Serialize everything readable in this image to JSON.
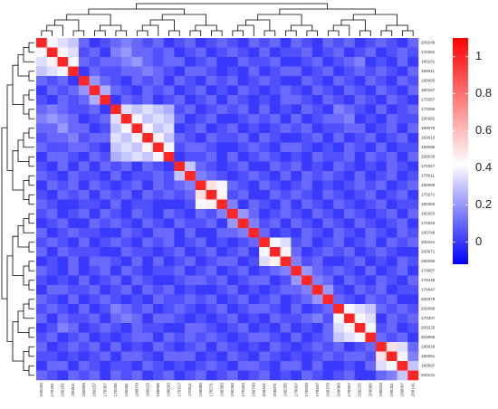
{
  "chart_data": {
    "type": "heatmap",
    "categories": [
      "200249",
      "170291",
      "180161",
      "180011",
      "180093",
      "180157",
      "170357",
      "170255",
      "190381",
      "180079",
      "160013",
      "180095",
      "190033",
      "170317",
      "170011",
      "190089",
      "170271",
      "190363",
      "190263",
      "170343",
      "180749",
      "200341",
      "200071",
      "190255",
      "170007",
      "170449",
      "170447",
      "200379",
      "200069",
      "170307",
      "200225",
      "200065",
      "190029",
      "190251",
      "180097",
      "200141"
    ],
    "values": [
      [
        1,
        0.4,
        0.35,
        0.3,
        0.1,
        0,
        0.05,
        0.1,
        0.15,
        0.1,
        0.05,
        0.1,
        0,
        0.05,
        0.1,
        0,
        0.05,
        0.1,
        0.05,
        0,
        0.1,
        0.05,
        0.1,
        0,
        0.1,
        0.05,
        0,
        0.1,
        0.05,
        0.1,
        0,
        0.05,
        0.1,
        0.05,
        0,
        0.1
      ],
      [
        0.4,
        1,
        0.45,
        0.35,
        0.05,
        0.1,
        0,
        0.15,
        0.2,
        0.1,
        0.1,
        0.05,
        0.1,
        0,
        0.05,
        0.1,
        0,
        0.05,
        0.1,
        0.05,
        0,
        0.1,
        0,
        0.05,
        0.05,
        0.1,
        0,
        0.05,
        0.1,
        0,
        0.05,
        0.1,
        0,
        0.05,
        0.1,
        0.05
      ],
      [
        0.35,
        0.45,
        1,
        0.4,
        0.1,
        0.05,
        0.1,
        0.1,
        0.15,
        0.2,
        0.1,
        0.05,
        0.1,
        0.1,
        0,
        0.05,
        0.1,
        0,
        0,
        0.1,
        0.05,
        0.05,
        0.1,
        0,
        0,
        0.05,
        0.1,
        0,
        0.05,
        0.1,
        0.15,
        0,
        0.05,
        0,
        0.1,
        0
      ],
      [
        0.3,
        0.35,
        0.4,
        1,
        0,
        0.1,
        0.05,
        0.05,
        0.1,
        0.1,
        0.15,
        0.1,
        0.05,
        0,
        0.1,
        0.1,
        0.05,
        0,
        0.05,
        0,
        0.1,
        0,
        0.05,
        0.1,
        0.1,
        0,
        0.05,
        0.1,
        0,
        0.05,
        0.1,
        0.05,
        0.1,
        0.05,
        0,
        0.1
      ],
      [
        0.1,
        0.05,
        0.1,
        0,
        1,
        0.2,
        0.1,
        0.05,
        0,
        0.1,
        0.05,
        0.1,
        0,
        0.1,
        0.05,
        0,
        0.1,
        0.05,
        0.1,
        0,
        0.05,
        0.1,
        0.05,
        0,
        0,
        0.1,
        0.05,
        0,
        0.1,
        0.05,
        0,
        0.1,
        0.05,
        0,
        0.1,
        0.05
      ],
      [
        0,
        0.1,
        0.05,
        0.1,
        0.2,
        1,
        0.25,
        0.1,
        0.05,
        0,
        0.1,
        0.05,
        0.1,
        0,
        0.05,
        0.1,
        0,
        0.05,
        0,
        0.1,
        0.05,
        0,
        0.05,
        0.1,
        0.05,
        0,
        0.1,
        0.05,
        0,
        0.1,
        0.05,
        0,
        0.1,
        0.05,
        0,
        0.1
      ],
      [
        0.05,
        0,
        0.1,
        0.05,
        0.1,
        0.25,
        1,
        0,
        0.1,
        0.05,
        0.1,
        0,
        0.05,
        0.1,
        0,
        0.05,
        0.1,
        0,
        0.1,
        0.05,
        0,
        0.05,
        0,
        0.1,
        0.1,
        0.05,
        0,
        0.1,
        0.05,
        0,
        0.1,
        0.05,
        0,
        0.1,
        0.05,
        0
      ],
      [
        0.1,
        0.15,
        0.1,
        0.05,
        0.05,
        0.1,
        0,
        1,
        0.35,
        0.3,
        0.35,
        0.3,
        0.25,
        0.05,
        0.1,
        0,
        0.05,
        0.1,
        0.05,
        0.1,
        0,
        0.1,
        0,
        0.05,
        0,
        0.1,
        0.05,
        0,
        0.15,
        0.1,
        0.05,
        0,
        0.1,
        0,
        0.05,
        0.1
      ],
      [
        0.15,
        0.2,
        0.15,
        0.1,
        0,
        0.05,
        0.1,
        0.35,
        1,
        0.4,
        0.3,
        0.35,
        0.3,
        0.1,
        0,
        0.05,
        0.1,
        0,
        0,
        0.05,
        0.1,
        0.05,
        0.1,
        0,
        0.1,
        0,
        0.05,
        0.1,
        0.1,
        0.15,
        0,
        0.05,
        0,
        0.1,
        0.05,
        0.05
      ],
      [
        0.1,
        0.1,
        0.2,
        0.1,
        0.1,
        0,
        0.05,
        0.3,
        0.4,
        1,
        0.4,
        0.3,
        0.35,
        0,
        0.05,
        0.1,
        0,
        0.05,
        0.1,
        0,
        0.05,
        0,
        0.05,
        0.1,
        0.05,
        0.1,
        0,
        0.05,
        0.05,
        0.1,
        0.1,
        0,
        0.05,
        0.1,
        0,
        0.1
      ],
      [
        0.05,
        0.1,
        0.1,
        0.15,
        0.05,
        0.1,
        0.1,
        0.35,
        0.3,
        0.4,
        1,
        0.45,
        0.3,
        0.1,
        0.05,
        0,
        0.1,
        0.05,
        0.05,
        0.1,
        0,
        0.1,
        0.05,
        0,
        0,
        0.05,
        0.1,
        0,
        0.1,
        0,
        0.05,
        0.1,
        0,
        0.05,
        0.1,
        0
      ],
      [
        0.1,
        0.05,
        0.05,
        0.1,
        0.1,
        0.05,
        0,
        0.3,
        0.35,
        0.3,
        0.45,
        1,
        0.4,
        0.05,
        0.1,
        0.1,
        0.05,
        0,
        0,
        0.05,
        0.1,
        0.05,
        0,
        0.1,
        0.1,
        0.05,
        0,
        0.05,
        0,
        0.1,
        0.05,
        0,
        0.1,
        0,
        0.05,
        0.05
      ],
      [
        0,
        0.1,
        0.1,
        0.05,
        0,
        0.1,
        0.05,
        0.25,
        0.3,
        0.35,
        0.3,
        0.4,
        1,
        0,
        0.05,
        0.05,
        0.1,
        0,
        0.1,
        0,
        0.05,
        0.1,
        0.05,
        0,
        0.05,
        0,
        0.1,
        0.05,
        0.05,
        0.1,
        0,
        0.1,
        0.05,
        0.1,
        0,
        0.1
      ],
      [
        0.05,
        0,
        0.1,
        0,
        0.1,
        0,
        0.1,
        0.05,
        0.1,
        0,
        0.1,
        0.05,
        0,
        1,
        0.3,
        0.1,
        0.05,
        0,
        0.05,
        0.1,
        0,
        0,
        0.1,
        0.05,
        0.1,
        0,
        0.05,
        0,
        0.1,
        0.05,
        0,
        0.05,
        0,
        0.1,
        0.05,
        0
      ],
      [
        0.1,
        0.05,
        0,
        0.1,
        0.05,
        0.05,
        0,
        0.1,
        0,
        0.05,
        0.05,
        0.1,
        0.05,
        0.3,
        1,
        0.15,
        0.1,
        0.05,
        0,
        0.05,
        0.1,
        0.05,
        0,
        0.1,
        0,
        0.1,
        0.05,
        0.1,
        0.05,
        0,
        0.1,
        0,
        0.05,
        0.1,
        0,
        0.05
      ],
      [
        0,
        0.1,
        0.05,
        0.1,
        0,
        0.1,
        0.05,
        0,
        0.05,
        0.1,
        0,
        0.1,
        0.05,
        0.1,
        0.15,
        1,
        0.5,
        0.4,
        0.1,
        0.05,
        0,
        0.1,
        0.05,
        0,
        0.05,
        0.1,
        0,
        0.05,
        0,
        0.05,
        0.1,
        0.05,
        0.1,
        0,
        0.05,
        0.1
      ],
      [
        0.05,
        0,
        0.1,
        0.05,
        0.1,
        0,
        0.1,
        0.05,
        0.1,
        0,
        0.1,
        0.05,
        0.1,
        0.05,
        0.1,
        0.5,
        1,
        0.45,
        0.05,
        0.1,
        0,
        0,
        0.1,
        0.05,
        0.1,
        0.05,
        0,
        0.1,
        0.05,
        0,
        0.05,
        0.1,
        0,
        0.05,
        0.1,
        0
      ],
      [
        0.1,
        0.05,
        0,
        0,
        0.05,
        0.05,
        0,
        0.1,
        0,
        0.05,
        0.05,
        0,
        0,
        0,
        0.05,
        0.4,
        0.45,
        1,
        0.15,
        0,
        0.1,
        0.05,
        0,
        0.1,
        0,
        0.1,
        0.05,
        0,
        0.1,
        0.05,
        0,
        0.05,
        0.1,
        0,
        0.05,
        0.05
      ],
      [
        0.05,
        0.1,
        0,
        0.05,
        0.1,
        0,
        0.1,
        0.05,
        0,
        0.1,
        0.05,
        0,
        0.1,
        0.05,
        0,
        0.1,
        0.05,
        0.15,
        1,
        0.2,
        0.1,
        0,
        0.05,
        0.1,
        0.05,
        0,
        0.1,
        0.05,
        0,
        0.1,
        0.05,
        0,
        0.05,
        0.1,
        0,
        0.1
      ],
      [
        0,
        0.05,
        0.1,
        0,
        0,
        0.1,
        0.05,
        0.1,
        0.05,
        0,
        0.1,
        0.05,
        0,
        0.1,
        0.05,
        0.05,
        0.1,
        0,
        0.2,
        1,
        0.15,
        0.05,
        0.1,
        0,
        0.1,
        0.05,
        0,
        0.1,
        0.05,
        0,
        0.1,
        0.05,
        0,
        0.05,
        0.1,
        0
      ],
      [
        0.1,
        0,
        0.05,
        0.1,
        0.05,
        0.05,
        0,
        0,
        0.1,
        0.05,
        0,
        0.1,
        0.1,
        0,
        0.1,
        0,
        0,
        0.1,
        0.1,
        0.15,
        1,
        0.1,
        0,
        0.05,
        0,
        0.1,
        0.05,
        0,
        0.1,
        0.05,
        0,
        0.1,
        0.05,
        0,
        0.1,
        0.05
      ],
      [
        0.05,
        0.1,
        0.05,
        0,
        0.1,
        0,
        0.05,
        0.1,
        0.05,
        0,
        0.1,
        0.05,
        0.1,
        0,
        0.05,
        0.1,
        0,
        0.05,
        0,
        0.05,
        0.1,
        1,
        0.4,
        0.35,
        0.05,
        0.1,
        0,
        0.05,
        0.1,
        0,
        0.05,
        0.1,
        0,
        0.1,
        0.05,
        0.1
      ],
      [
        0.1,
        0,
        0.1,
        0.05,
        0.05,
        0.05,
        0,
        0,
        0.1,
        0.05,
        0.05,
        0,
        0.05,
        0.1,
        0,
        0.05,
        0.1,
        0,
        0.05,
        0.1,
        0,
        0.4,
        1,
        0.45,
        0.1,
        0,
        0.05,
        0.1,
        0.05,
        0.1,
        0,
        0.05,
        0.1,
        0.05,
        0,
        0
      ],
      [
        0,
        0.05,
        0,
        0.1,
        0,
        0.1,
        0.1,
        0.05,
        0,
        0.1,
        0,
        0.1,
        0,
        0.05,
        0.1,
        0,
        0.05,
        0.1,
        0.1,
        0,
        0.05,
        0.35,
        0.45,
        1,
        0.15,
        0.05,
        0.1,
        0,
        0,
        0.05,
        0.1,
        0,
        0.05,
        0,
        0.1,
        0.05
      ],
      [
        0.1,
        0.05,
        0,
        0.1,
        0,
        0.05,
        0.1,
        0,
        0.1,
        0.05,
        0,
        0.05,
        0.05,
        0.1,
        0,
        0.05,
        0.1,
        0,
        0.05,
        0.1,
        0,
        0.05,
        0.1,
        0.15,
        1,
        0.2,
        0.1,
        0.05,
        0.1,
        0.05,
        0,
        0.1,
        0,
        0.05,
        0.1,
        0
      ],
      [
        0.05,
        0,
        0.05,
        0,
        0.1,
        0,
        0.05,
        0.1,
        0,
        0.1,
        0.05,
        0,
        0,
        0.05,
        0.1,
        0.1,
        0.05,
        0.1,
        0,
        0.05,
        0.1,
        0.1,
        0,
        0.05,
        0.2,
        1,
        0.15,
        0.1,
        0,
        0.1,
        0.05,
        0,
        0.1,
        0.05,
        0,
        0.1
      ],
      [
        0,
        0.1,
        0.1,
        0.05,
        0.05,
        0.1,
        0,
        0.05,
        0.1,
        0,
        0.1,
        0.05,
        0.1,
        0,
        0.05,
        0,
        0,
        0.05,
        0.1,
        0,
        0.05,
        0,
        0.05,
        0.1,
        0.1,
        0.15,
        1,
        0.2,
        0.05,
        0,
        0.1,
        0.05,
        0.1,
        0,
        0.05,
        0.05
      ],
      [
        0.1,
        0.05,
        0,
        0.1,
        0,
        0.05,
        0.1,
        0.05,
        0,
        0.05,
        0,
        0.1,
        0.05,
        0.05,
        0.1,
        0.05,
        0.1,
        0,
        0.05,
        0.1,
        0,
        0.05,
        0.1,
        0,
        0.05,
        0.1,
        0.2,
        1,
        0.1,
        0.05,
        0,
        0.1,
        0.05,
        0.1,
        0,
        0
      ],
      [
        0.05,
        0.1,
        0.05,
        0,
        0.1,
        0,
        0.05,
        0.15,
        0.1,
        0.05,
        0.1,
        0,
        0.05,
        0.1,
        0.05,
        0,
        0.05,
        0.1,
        0,
        0.05,
        0.1,
        0.1,
        0.05,
        0,
        0.1,
        0,
        0.05,
        0.1,
        1,
        0.4,
        0.35,
        0.3,
        0.1,
        0.05,
        0.1,
        0.05
      ],
      [
        0.1,
        0,
        0.1,
        0.05,
        0.05,
        0.1,
        0,
        0.1,
        0.15,
        0.1,
        0,
        0.1,
        0.1,
        0.05,
        0,
        0.05,
        0,
        0.05,
        0.1,
        0,
        0.05,
        0,
        0.1,
        0.05,
        0.05,
        0.1,
        0.15,
        0.05,
        0.4,
        1,
        0.45,
        0.35,
        0,
        0.1,
        0.05,
        0.1
      ],
      [
        0,
        0.05,
        0.15,
        0.1,
        0,
        0.05,
        0.1,
        0.05,
        0,
        0.1,
        0.05,
        0.05,
        0,
        0,
        0.1,
        0.1,
        0.05,
        0,
        0.05,
        0.1,
        0,
        0.05,
        0,
        0.1,
        0,
        0.05,
        0,
        0.1,
        0.35,
        0.45,
        1,
        0.4,
        0.05,
        0.1,
        0,
        0.05
      ],
      [
        0.05,
        0.1,
        0,
        0.05,
        0.1,
        0,
        0.05,
        0,
        0.05,
        0.1,
        0.1,
        0,
        0.1,
        0.05,
        0.1,
        0.05,
        0.1,
        0.05,
        0,
        0.05,
        0.1,
        0.1,
        0.05,
        0,
        0.1,
        0,
        0.05,
        0.1,
        0.3,
        0.35,
        0.4,
        1,
        0.1,
        0.05,
        0.1,
        0
      ],
      [
        0.1,
        0,
        0.05,
        0.1,
        0.05,
        0.1,
        0,
        0.1,
        0,
        0.05,
        0,
        0.1,
        0.05,
        0,
        0.05,
        0.1,
        0,
        0.1,
        0.05,
        0,
        0.05,
        0,
        0.1,
        0.05,
        0,
        0.05,
        0.1,
        0.05,
        0.1,
        0,
        0.05,
        0.1,
        1,
        0.5,
        0.35,
        0.1
      ],
      [
        0.05,
        0.05,
        0,
        0.05,
        0,
        0.05,
        0.1,
        0,
        0.1,
        0.1,
        0.05,
        0,
        0.1,
        0.1,
        0.1,
        0,
        0.05,
        0,
        0.1,
        0.05,
        0,
        0.1,
        0.05,
        0,
        0.05,
        0,
        0.05,
        0.1,
        0.05,
        0.1,
        0.1,
        0.05,
        0.5,
        1,
        0.4,
        0.15
      ],
      [
        0,
        0.1,
        0.1,
        0,
        0.1,
        0.05,
        0,
        0.05,
        0.05,
        0,
        0.1,
        0.05,
        0,
        0.05,
        0,
        0.05,
        0.1,
        0.05,
        0,
        0.1,
        0.1,
        0.05,
        0,
        0.1,
        0.1,
        0,
        0.1,
        0,
        0,
        0.05,
        0,
        0.1,
        0.35,
        0.4,
        1,
        0.3
      ],
      [
        0.1,
        0.05,
        0,
        0.1,
        0.05,
        0.1,
        0,
        0.1,
        0.05,
        0.1,
        0,
        0.05,
        0.1,
        0,
        0.05,
        0.1,
        0,
        0.05,
        0.1,
        0,
        0.05,
        0.1,
        0,
        0.05,
        0,
        0.1,
        0.05,
        0,
        0.05,
        0.1,
        0,
        0,
        0.1,
        0.15,
        0.3,
        1
      ]
    ],
    "clim": [
      -0.12,
      1.1
    ],
    "colormap": [
      [
        -0.12,
        "#0000ff"
      ],
      [
        0.42,
        "#ffffff"
      ],
      [
        1.1,
        "#ff0000"
      ]
    ],
    "colorbar_ticks": [
      0,
      0.2,
      0.4,
      0.6,
      0.8,
      1
    ]
  }
}
